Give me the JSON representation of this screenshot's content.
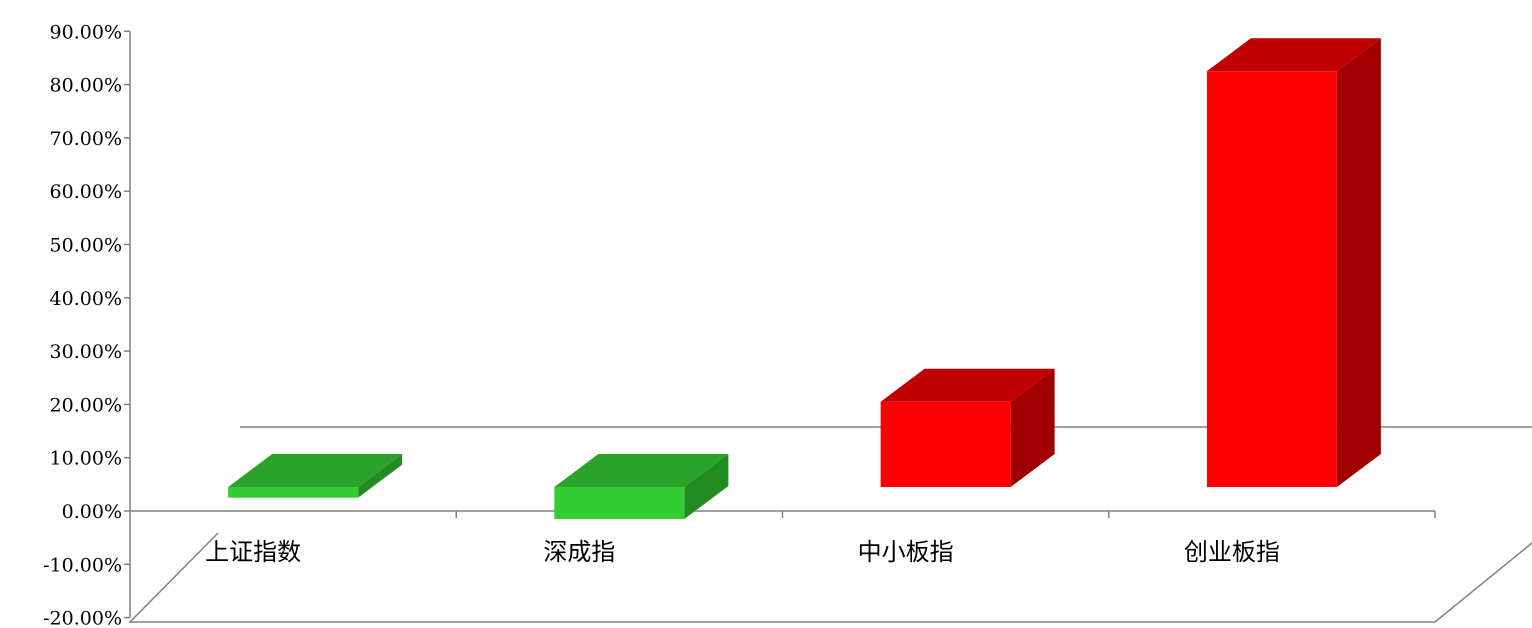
{
  "chart_data": {
    "type": "bar",
    "title": "",
    "xlabel": "",
    "ylabel": "",
    "categories": [
      "上证指数",
      "深成指",
      "中小板指",
      "创业板指"
    ],
    "values": [
      -2.0,
      -6.0,
      16.0,
      78.0
    ],
    "ylim": [
      -20,
      90
    ],
    "yticks": [
      "-20.00%",
      "-10.00%",
      "0.00%",
      "10.00%",
      "20.00%",
      "30.00%",
      "40.00%",
      "50.00%",
      "60.00%",
      "70.00%",
      "80.00%",
      "90.00%"
    ],
    "grid": false,
    "legend": "none",
    "style": "3d-column",
    "colors": {
      "positive_front": "#ff0000",
      "positive_top": "#c00000",
      "positive_side": "#a00000",
      "negative_front": "#33cc33",
      "negative_top": "#29a329",
      "negative_side": "#228b22",
      "axis": "#808080"
    }
  }
}
